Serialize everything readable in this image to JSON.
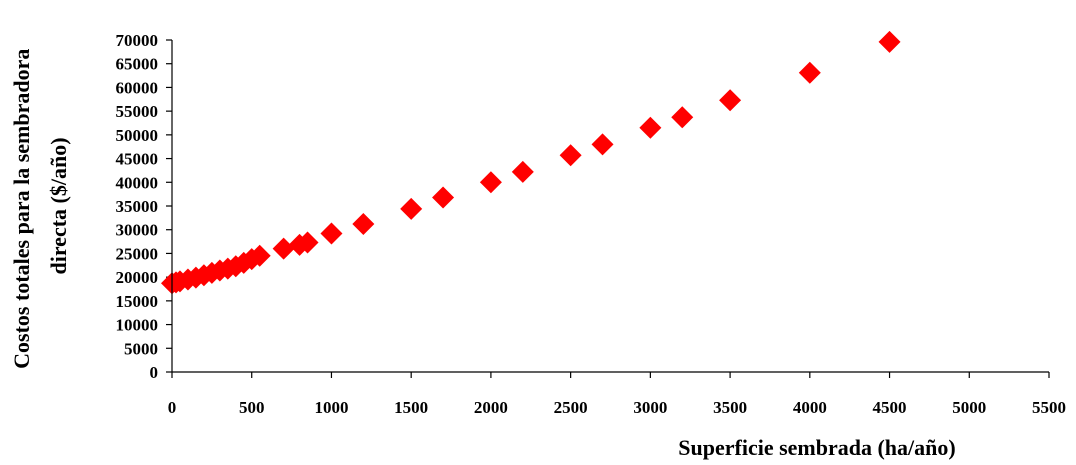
{
  "chart_data": {
    "type": "scatter",
    "xlabel": "Superficie sembrada  (ha/año)",
    "ylabel_lines": [
      "Costos totales para la sembradora",
      "directa ($/año)"
    ],
    "xlim": [
      0,
      5500
    ],
    "ylim": [
      0,
      70000
    ],
    "x_ticks": [
      0,
      500,
      1000,
      1500,
      2000,
      2500,
      3000,
      3500,
      4000,
      4500,
      5000,
      5500
    ],
    "y_ticks": [
      0,
      5000,
      10000,
      15000,
      20000,
      25000,
      30000,
      35000,
      40000,
      45000,
      50000,
      55000,
      60000,
      65000,
      70000
    ],
    "grid": false,
    "legend": "none",
    "marker": "diamond",
    "color": "#ff0000",
    "points": [
      {
        "x": 0,
        "y": 18700
      },
      {
        "x": 25,
        "y": 18900
      },
      {
        "x": 50,
        "y": 19100
      },
      {
        "x": 100,
        "y": 19500
      },
      {
        "x": 150,
        "y": 19900
      },
      {
        "x": 200,
        "y": 20400
      },
      {
        "x": 250,
        "y": 20900
      },
      {
        "x": 300,
        "y": 21400
      },
      {
        "x": 350,
        "y": 21800
      },
      {
        "x": 400,
        "y": 22300
      },
      {
        "x": 450,
        "y": 23000
      },
      {
        "x": 500,
        "y": 23800
      },
      {
        "x": 550,
        "y": 24500
      },
      {
        "x": 700,
        "y": 26000
      },
      {
        "x": 800,
        "y": 26800
      },
      {
        "x": 850,
        "y": 27300
      },
      {
        "x": 1000,
        "y": 29200
      },
      {
        "x": 1200,
        "y": 31200
      },
      {
        "x": 1500,
        "y": 34400
      },
      {
        "x": 1700,
        "y": 36800
      },
      {
        "x": 2000,
        "y": 40000
      },
      {
        "x": 2200,
        "y": 42200
      },
      {
        "x": 2500,
        "y": 45700
      },
      {
        "x": 2700,
        "y": 48000
      },
      {
        "x": 3000,
        "y": 51500
      },
      {
        "x": 3200,
        "y": 53700
      },
      {
        "x": 3500,
        "y": 57300
      },
      {
        "x": 4000,
        "y": 63100
      },
      {
        "x": 4500,
        "y": 69600
      }
    ]
  }
}
